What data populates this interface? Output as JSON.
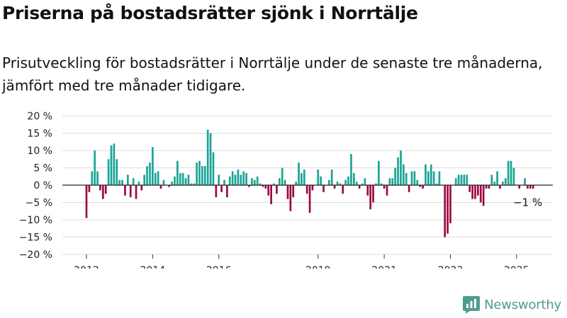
{
  "title": "Priserna på bostadsrätter sjönk i Norrtälje",
  "subtitle": "Prisutveckling för bostadsrätter i Norrtälje under de senaste tre månaderna, jämfört med tre månader tidigare.",
  "brand": {
    "name": "Newsworthy"
  },
  "colors": {
    "positive": "#1aa596",
    "negative": "#9c0a44",
    "grid": "#dddddd",
    "baseline": "#222222",
    "brand": "#4d9d8d"
  },
  "chart_data": {
    "type": "bar",
    "title": "",
    "xlabel": "",
    "ylabel": "",
    "ylim": [
      -20,
      20
    ],
    "y_ticks": [
      20,
      15,
      10,
      5,
      0,
      -5,
      -10,
      -15,
      -20
    ],
    "y_tick_labels": [
      "20 %",
      "15 %",
      "10 %",
      "5 %",
      "0 %",
      "−5 %",
      "−10 %",
      "−15 %",
      "−20 %"
    ],
    "x_ticks": [
      {
        "label": "2012",
        "index": 0
      },
      {
        "label": "2014",
        "index": 24
      },
      {
        "label": "2016",
        "index": 48
      },
      {
        "label": "2019",
        "index": 84
      },
      {
        "label": "2021",
        "index": 108
      },
      {
        "label": "2023",
        "index": 132
      },
      {
        "label": "2025",
        "index": 156
      }
    ],
    "last_value_label": "−1 %",
    "grid": true,
    "legend": "none",
    "values": [
      -9.5,
      -2,
      4,
      10,
      4,
      -1.5,
      -4,
      -2.5,
      7.5,
      11.5,
      12,
      7.5,
      1.5,
      1.5,
      -3,
      3,
      -3.5,
      2,
      -4,
      1,
      -1.5,
      3,
      5.5,
      6.5,
      11,
      3.5,
      4,
      -1,
      1.5,
      0,
      -0.5,
      1,
      2.5,
      7,
      3.5,
      3.5,
      2,
      3,
      0.5,
      0.5,
      6.5,
      7,
      5.5,
      5.5,
      16,
      15,
      9.5,
      -3.5,
      3,
      -2,
      1.5,
      -3.5,
      2.5,
      4,
      3,
      4.5,
      3,
      4,
      3.5,
      -0.5,
      2,
      1.5,
      2.5,
      0.5,
      -0.5,
      -1,
      -3,
      -5.5,
      0.5,
      -2.5,
      2,
      5,
      1.5,
      -4,
      -7.5,
      -3.5,
      1,
      6.5,
      3.5,
      4.5,
      -2.5,
      -8,
      -1.5,
      0,
      4.5,
      2.5,
      -2,
      0,
      1.5,
      4.5,
      -1,
      1,
      0.5,
      -2.5,
      1.5,
      2.5,
      9,
      3.5,
      1,
      -1,
      0.5,
      2,
      -3,
      -7,
      -5,
      0.5,
      7,
      0.5,
      -1,
      -3,
      2,
      2,
      5,
      8,
      10,
      6,
      3.5,
      -2,
      4,
      4,
      1.5,
      -0.5,
      -1,
      6,
      4,
      6,
      4,
      0.5,
      4,
      0,
      -15,
      -14,
      -11,
      0,
      2,
      3,
      3,
      3,
      3,
      -2,
      -4,
      -4,
      -3,
      -5,
      -6,
      -1,
      -1,
      3,
      1,
      4,
      -1,
      1,
      2,
      7,
      7,
      5,
      0,
      -1,
      0,
      2,
      -1,
      -1,
      -1
    ]
  }
}
